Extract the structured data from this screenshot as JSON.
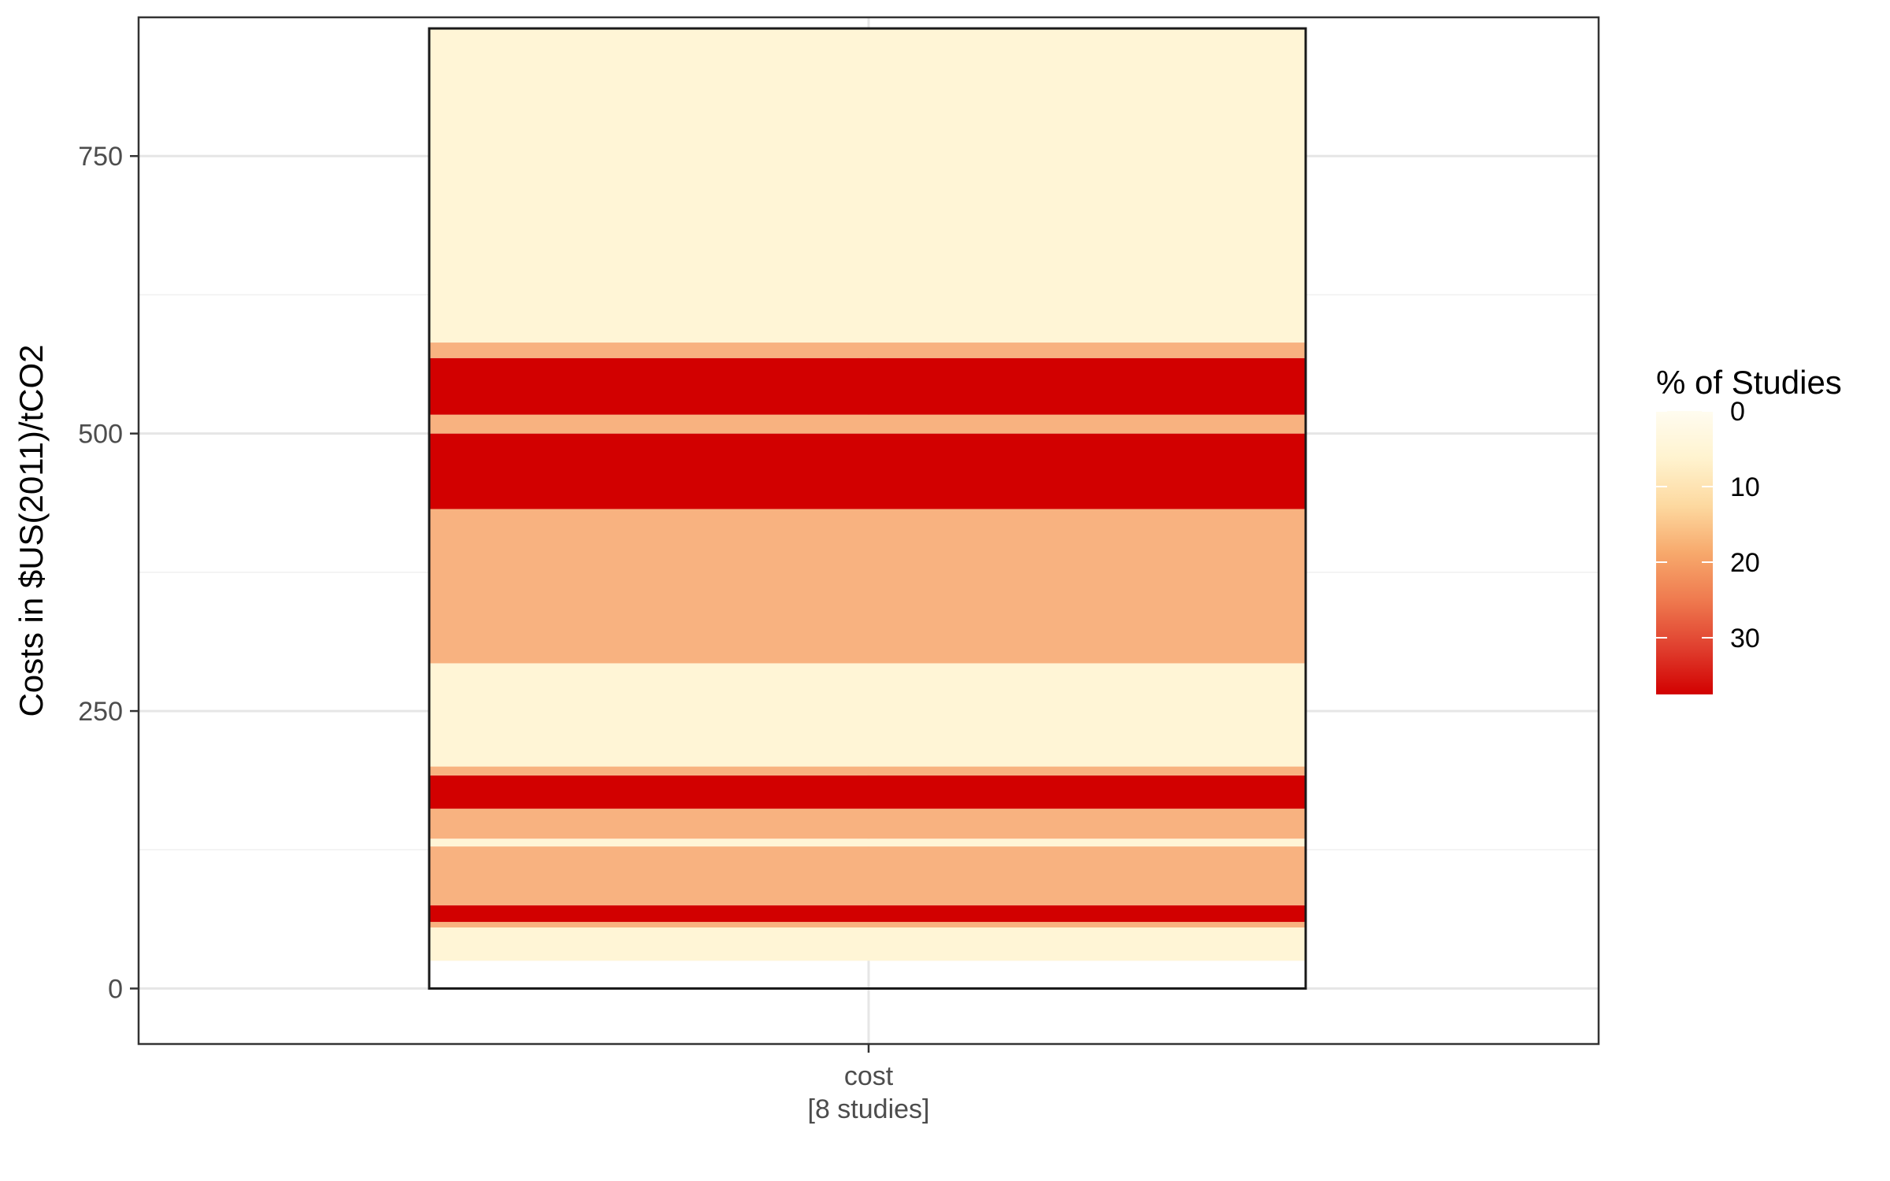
{
  "chart_data": {
    "type": "heatmap",
    "title": "",
    "xlabel": "",
    "ylabel": "Costs in $US(2011)/tCO2",
    "ylim": [
      -50,
      875
    ],
    "yticks": [
      0,
      250,
      500,
      750
    ],
    "y_tick_labels": [
      "0",
      "250",
      "500",
      "750"
    ],
    "y_minor_ticks": [
      125,
      375,
      625,
      875
    ],
    "grid": true,
    "categories": [
      {
        "label": "cost",
        "sublabel": "[8 studies]"
      }
    ],
    "outline": {
      "y_min": 0,
      "y_max": 865
    },
    "bands": [
      {
        "y0": 25,
        "y1": 55,
        "value": 12.5
      },
      {
        "y0": 55,
        "y1": 60,
        "value": 25
      },
      {
        "y0": 60,
        "y1": 75,
        "value": 37.5
      },
      {
        "y0": 75,
        "y1": 128,
        "value": 25
      },
      {
        "y0": 128,
        "y1": 135,
        "value": 12.5
      },
      {
        "y0": 135,
        "y1": 162,
        "value": 25
      },
      {
        "y0": 162,
        "y1": 192,
        "value": 37.5
      },
      {
        "y0": 192,
        "y1": 200,
        "value": 25
      },
      {
        "y0": 200,
        "y1": 293,
        "value": 12.5
      },
      {
        "y0": 293,
        "y1": 432,
        "value": 25
      },
      {
        "y0": 432,
        "y1": 500,
        "value": 37.5
      },
      {
        "y0": 500,
        "y1": 517,
        "value": 25
      },
      {
        "y0": 517,
        "y1": 568,
        "value": 37.5
      },
      {
        "y0": 568,
        "y1": 582,
        "value": 25
      },
      {
        "y0": 582,
        "y1": 865,
        "value": 12.5
      }
    ],
    "colorbar": {
      "title": "% of Studies",
      "range": [
        0,
        37.5
      ],
      "ticks": [
        0,
        10,
        20,
        30
      ],
      "tick_labels": [
        "0",
        "10",
        "20",
        "30"
      ],
      "colors": [
        "#fffcf0",
        "#fff3cf",
        "#fdd9a0",
        "#f7a96c",
        "#ef7a4f",
        "#e0402f",
        "#d20000"
      ]
    },
    "band_colors": {
      "12.5": "#fff5d6",
      "25": "#f8b280",
      "37.5": "#d20000"
    },
    "legend_position": "right"
  }
}
